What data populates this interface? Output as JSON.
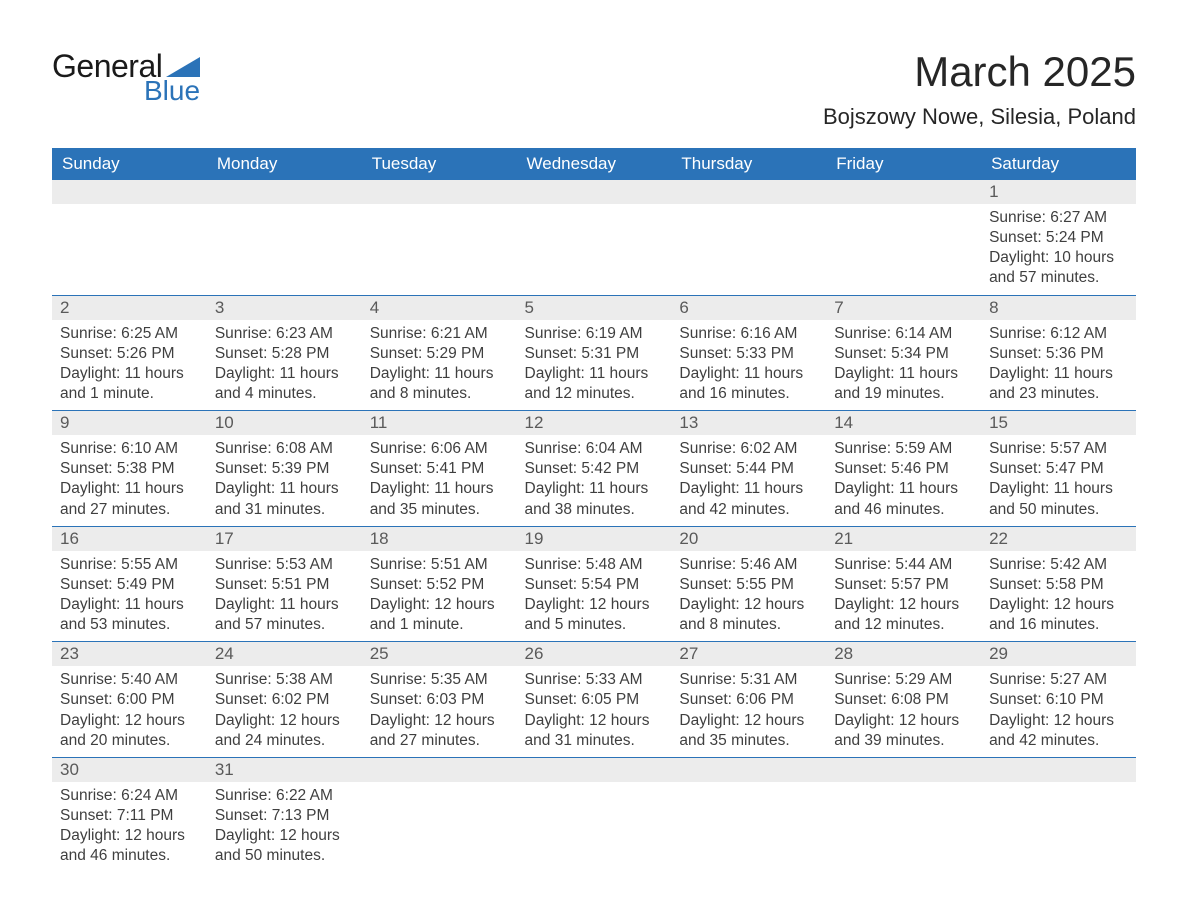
{
  "logo": {
    "text_general": "General",
    "text_blue": "Blue"
  },
  "header": {
    "month_title": "March 2025",
    "location": "Bojszowy Nowe, Silesia, Poland"
  },
  "colors": {
    "header_bg": "#2b73b8",
    "header_fg": "#ffffff",
    "daynum_bg": "#ececec",
    "text": "#3a3a3a",
    "sep": "#2b73b8"
  },
  "day_headers": [
    "Sunday",
    "Monday",
    "Tuesday",
    "Wednesday",
    "Thursday",
    "Friday",
    "Saturday"
  ],
  "weeks": [
    [
      null,
      null,
      null,
      null,
      null,
      null,
      {
        "num": "1",
        "sunrise": "Sunrise: 6:27 AM",
        "sunset": "Sunset: 5:24 PM",
        "day_a": "Daylight: 10 hours",
        "day_b": "and 57 minutes."
      }
    ],
    [
      {
        "num": "2",
        "sunrise": "Sunrise: 6:25 AM",
        "sunset": "Sunset: 5:26 PM",
        "day_a": "Daylight: 11 hours",
        "day_b": "and 1 minute."
      },
      {
        "num": "3",
        "sunrise": "Sunrise: 6:23 AM",
        "sunset": "Sunset: 5:28 PM",
        "day_a": "Daylight: 11 hours",
        "day_b": "and 4 minutes."
      },
      {
        "num": "4",
        "sunrise": "Sunrise: 6:21 AM",
        "sunset": "Sunset: 5:29 PM",
        "day_a": "Daylight: 11 hours",
        "day_b": "and 8 minutes."
      },
      {
        "num": "5",
        "sunrise": "Sunrise: 6:19 AM",
        "sunset": "Sunset: 5:31 PM",
        "day_a": "Daylight: 11 hours",
        "day_b": "and 12 minutes."
      },
      {
        "num": "6",
        "sunrise": "Sunrise: 6:16 AM",
        "sunset": "Sunset: 5:33 PM",
        "day_a": "Daylight: 11 hours",
        "day_b": "and 16 minutes."
      },
      {
        "num": "7",
        "sunrise": "Sunrise: 6:14 AM",
        "sunset": "Sunset: 5:34 PM",
        "day_a": "Daylight: 11 hours",
        "day_b": "and 19 minutes."
      },
      {
        "num": "8",
        "sunrise": "Sunrise: 6:12 AM",
        "sunset": "Sunset: 5:36 PM",
        "day_a": "Daylight: 11 hours",
        "day_b": "and 23 minutes."
      }
    ],
    [
      {
        "num": "9",
        "sunrise": "Sunrise: 6:10 AM",
        "sunset": "Sunset: 5:38 PM",
        "day_a": "Daylight: 11 hours",
        "day_b": "and 27 minutes."
      },
      {
        "num": "10",
        "sunrise": "Sunrise: 6:08 AM",
        "sunset": "Sunset: 5:39 PM",
        "day_a": "Daylight: 11 hours",
        "day_b": "and 31 minutes."
      },
      {
        "num": "11",
        "sunrise": "Sunrise: 6:06 AM",
        "sunset": "Sunset: 5:41 PM",
        "day_a": "Daylight: 11 hours",
        "day_b": "and 35 minutes."
      },
      {
        "num": "12",
        "sunrise": "Sunrise: 6:04 AM",
        "sunset": "Sunset: 5:42 PM",
        "day_a": "Daylight: 11 hours",
        "day_b": "and 38 minutes."
      },
      {
        "num": "13",
        "sunrise": "Sunrise: 6:02 AM",
        "sunset": "Sunset: 5:44 PM",
        "day_a": "Daylight: 11 hours",
        "day_b": "and 42 minutes."
      },
      {
        "num": "14",
        "sunrise": "Sunrise: 5:59 AM",
        "sunset": "Sunset: 5:46 PM",
        "day_a": "Daylight: 11 hours",
        "day_b": "and 46 minutes."
      },
      {
        "num": "15",
        "sunrise": "Sunrise: 5:57 AM",
        "sunset": "Sunset: 5:47 PM",
        "day_a": "Daylight: 11 hours",
        "day_b": "and 50 minutes."
      }
    ],
    [
      {
        "num": "16",
        "sunrise": "Sunrise: 5:55 AM",
        "sunset": "Sunset: 5:49 PM",
        "day_a": "Daylight: 11 hours",
        "day_b": "and 53 minutes."
      },
      {
        "num": "17",
        "sunrise": "Sunrise: 5:53 AM",
        "sunset": "Sunset: 5:51 PM",
        "day_a": "Daylight: 11 hours",
        "day_b": "and 57 minutes."
      },
      {
        "num": "18",
        "sunrise": "Sunrise: 5:51 AM",
        "sunset": "Sunset: 5:52 PM",
        "day_a": "Daylight: 12 hours",
        "day_b": "and 1 minute."
      },
      {
        "num": "19",
        "sunrise": "Sunrise: 5:48 AM",
        "sunset": "Sunset: 5:54 PM",
        "day_a": "Daylight: 12 hours",
        "day_b": "and 5 minutes."
      },
      {
        "num": "20",
        "sunrise": "Sunrise: 5:46 AM",
        "sunset": "Sunset: 5:55 PM",
        "day_a": "Daylight: 12 hours",
        "day_b": "and 8 minutes."
      },
      {
        "num": "21",
        "sunrise": "Sunrise: 5:44 AM",
        "sunset": "Sunset: 5:57 PM",
        "day_a": "Daylight: 12 hours",
        "day_b": "and 12 minutes."
      },
      {
        "num": "22",
        "sunrise": "Sunrise: 5:42 AM",
        "sunset": "Sunset: 5:58 PM",
        "day_a": "Daylight: 12 hours",
        "day_b": "and 16 minutes."
      }
    ],
    [
      {
        "num": "23",
        "sunrise": "Sunrise: 5:40 AM",
        "sunset": "Sunset: 6:00 PM",
        "day_a": "Daylight: 12 hours",
        "day_b": "and 20 minutes."
      },
      {
        "num": "24",
        "sunrise": "Sunrise: 5:38 AM",
        "sunset": "Sunset: 6:02 PM",
        "day_a": "Daylight: 12 hours",
        "day_b": "and 24 minutes."
      },
      {
        "num": "25",
        "sunrise": "Sunrise: 5:35 AM",
        "sunset": "Sunset: 6:03 PM",
        "day_a": "Daylight: 12 hours",
        "day_b": "and 27 minutes."
      },
      {
        "num": "26",
        "sunrise": "Sunrise: 5:33 AM",
        "sunset": "Sunset: 6:05 PM",
        "day_a": "Daylight: 12 hours",
        "day_b": "and 31 minutes."
      },
      {
        "num": "27",
        "sunrise": "Sunrise: 5:31 AM",
        "sunset": "Sunset: 6:06 PM",
        "day_a": "Daylight: 12 hours",
        "day_b": "and 35 minutes."
      },
      {
        "num": "28",
        "sunrise": "Sunrise: 5:29 AM",
        "sunset": "Sunset: 6:08 PM",
        "day_a": "Daylight: 12 hours",
        "day_b": "and 39 minutes."
      },
      {
        "num": "29",
        "sunrise": "Sunrise: 5:27 AM",
        "sunset": "Sunset: 6:10 PM",
        "day_a": "Daylight: 12 hours",
        "day_b": "and 42 minutes."
      }
    ],
    [
      {
        "num": "30",
        "sunrise": "Sunrise: 6:24 AM",
        "sunset": "Sunset: 7:11 PM",
        "day_a": "Daylight: 12 hours",
        "day_b": "and 46 minutes."
      },
      {
        "num": "31",
        "sunrise": "Sunrise: 6:22 AM",
        "sunset": "Sunset: 7:13 PM",
        "day_a": "Daylight: 12 hours",
        "day_b": "and 50 minutes."
      },
      null,
      null,
      null,
      null,
      null
    ]
  ],
  "fonts": {
    "title_pt": 42,
    "location_pt": 22,
    "header_pt": 17,
    "daynum_pt": 17,
    "body_pt": 15.5
  }
}
